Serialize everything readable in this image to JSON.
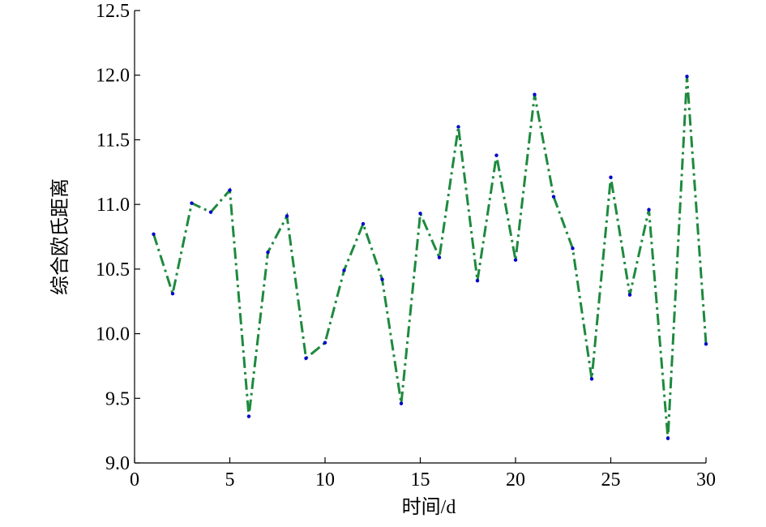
{
  "chart_data": {
    "type": "line",
    "x_label": "时间/d",
    "y_label": "综合欧氏距离",
    "x": [
      1,
      2,
      3,
      4,
      5,
      6,
      7,
      8,
      9,
      10,
      11,
      12,
      13,
      14,
      15,
      16,
      17,
      18,
      19,
      20,
      21,
      22,
      23,
      24,
      25,
      26,
      27,
      28,
      29,
      30
    ],
    "values": [
      10.77,
      10.31,
      11.01,
      10.94,
      11.11,
      9.36,
      10.63,
      10.91,
      9.81,
      9.93,
      10.49,
      10.85,
      10.42,
      9.46,
      10.93,
      10.59,
      11.6,
      10.41,
      11.38,
      10.57,
      11.85,
      11.06,
      10.66,
      9.65,
      11.21,
      10.3,
      10.96,
      9.19,
      11.99,
      9.92
    ],
    "color": "#1e8a3e",
    "marker_color": "#0000cc",
    "xlim": [
      0,
      30
    ],
    "xticks": [
      0,
      5,
      10,
      15,
      20,
      25,
      30
    ],
    "ylim": [
      9,
      12.5
    ],
    "yticks": [
      {
        "value": 9,
        "label": "9.0"
      },
      9.5,
      {
        "value": 10,
        "label": "10.0"
      },
      10.5,
      {
        "value": 11,
        "label": "11.0"
      },
      11.5,
      {
        "value": 12,
        "label": "12.0"
      },
      12.5
    ],
    "grid": false
  }
}
